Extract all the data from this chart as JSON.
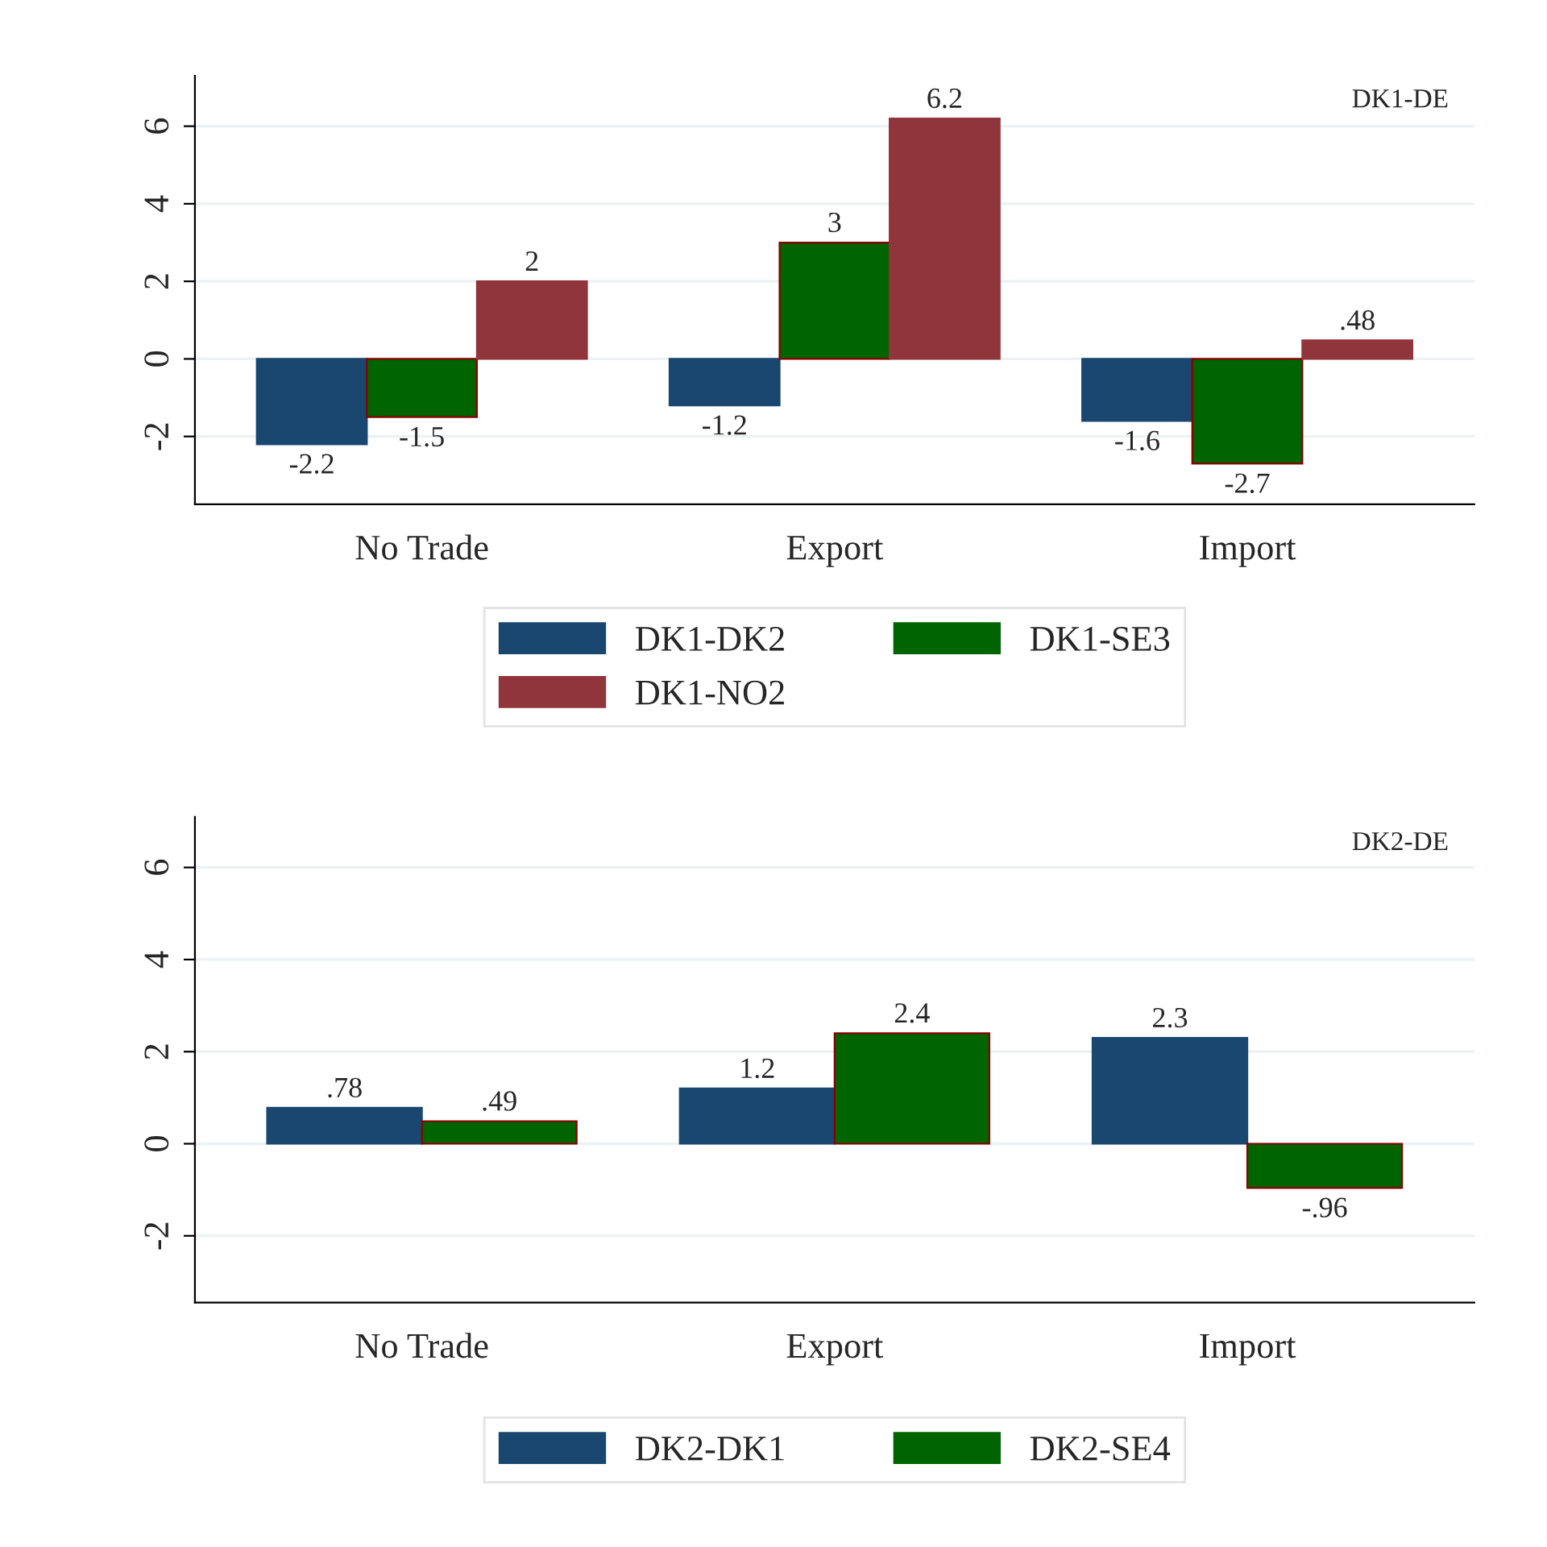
{
  "chart_data": [
    {
      "type": "bar",
      "categories": [
        "No Trade",
        "Export",
        "Import"
      ],
      "ylim": [
        -3.75,
        7.3
      ],
      "yticks": [
        -2,
        0,
        2,
        4,
        6
      ],
      "grid": "y",
      "legend": "bottom",
      "annotations": [
        "DK1-DE"
      ],
      "series": [
        {
          "name": "DK1-DK2",
          "color": "#1a476f",
          "values": [
            -2.2,
            -1.2,
            -1.6
          ],
          "value_labels": [
            "-2.2",
            "-1.2",
            "-1.6"
          ]
        },
        {
          "name": "DK1-SE3",
          "color": "#006400",
          "values": [
            -1.5,
            3,
            -2.7
          ],
          "value_labels": [
            "-1.5",
            "3",
            "-2.7"
          ]
        },
        {
          "name": "DK1-NO2",
          "color": "#90353b",
          "values": [
            2,
            6.2,
            0.48
          ],
          "value_labels": [
            "2",
            "6.2",
            ".48"
          ]
        }
      ]
    },
    {
      "type": "bar",
      "categories": [
        "No Trade",
        "Export",
        "Import"
      ],
      "ylim": [
        -3.45,
        7.1
      ],
      "yticks": [
        -2,
        0,
        2,
        4,
        6
      ],
      "grid": "y",
      "legend": "bottom",
      "annotations": [
        "DK2-DE"
      ],
      "series": [
        {
          "name": "DK2-DK1",
          "color": "#1a476f",
          "values": [
            0.78,
            1.2,
            2.3
          ],
          "value_labels": [
            ".78",
            "1.2",
            "2.3"
          ]
        },
        {
          "name": "DK2-SE4",
          "color": "#006400",
          "values": [
            0.49,
            2.4,
            -0.96
          ],
          "value_labels": [
            ".49",
            "2.4",
            "-.96"
          ]
        }
      ]
    }
  ]
}
